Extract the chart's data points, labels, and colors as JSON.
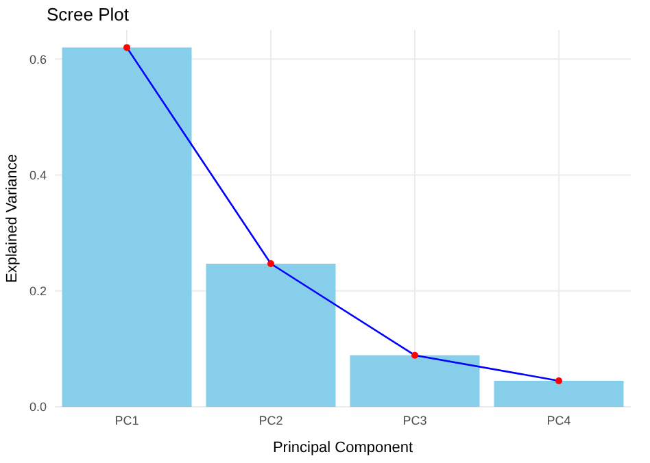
{
  "chart_data": {
    "type": "bar",
    "title": "Scree Plot",
    "xlabel": "Principal Component",
    "ylabel": "Explained Variance",
    "categories": [
      "PC1",
      "PC2",
      "PC3",
      "PC4"
    ],
    "series": [
      {
        "color": "#87ceeb",
        "values": [
          0.62,
          0.247,
          0.089,
          0.045
        ]
      },
      {
        "type": "line",
        "color": "#0000ff",
        "marker": "none",
        "values": [
          0.62,
          0.247,
          0.089,
          0.045
        ]
      },
      {
        "type": "scatter",
        "color": "#ff0000",
        "marker": "circle",
        "values": [
          0.62,
          0.247,
          0.089,
          0.045
        ]
      }
    ],
    "ylim": [
      0,
      0.65
    ],
    "yticks": [
      {
        "value": 0,
        "label": "0.0"
      },
      {
        "value": 0.2,
        "label": "0.2"
      },
      {
        "value": 0.4,
        "label": "0.4"
      },
      {
        "value": 0.6,
        "label": "0.6"
      }
    ],
    "grid": true
  }
}
